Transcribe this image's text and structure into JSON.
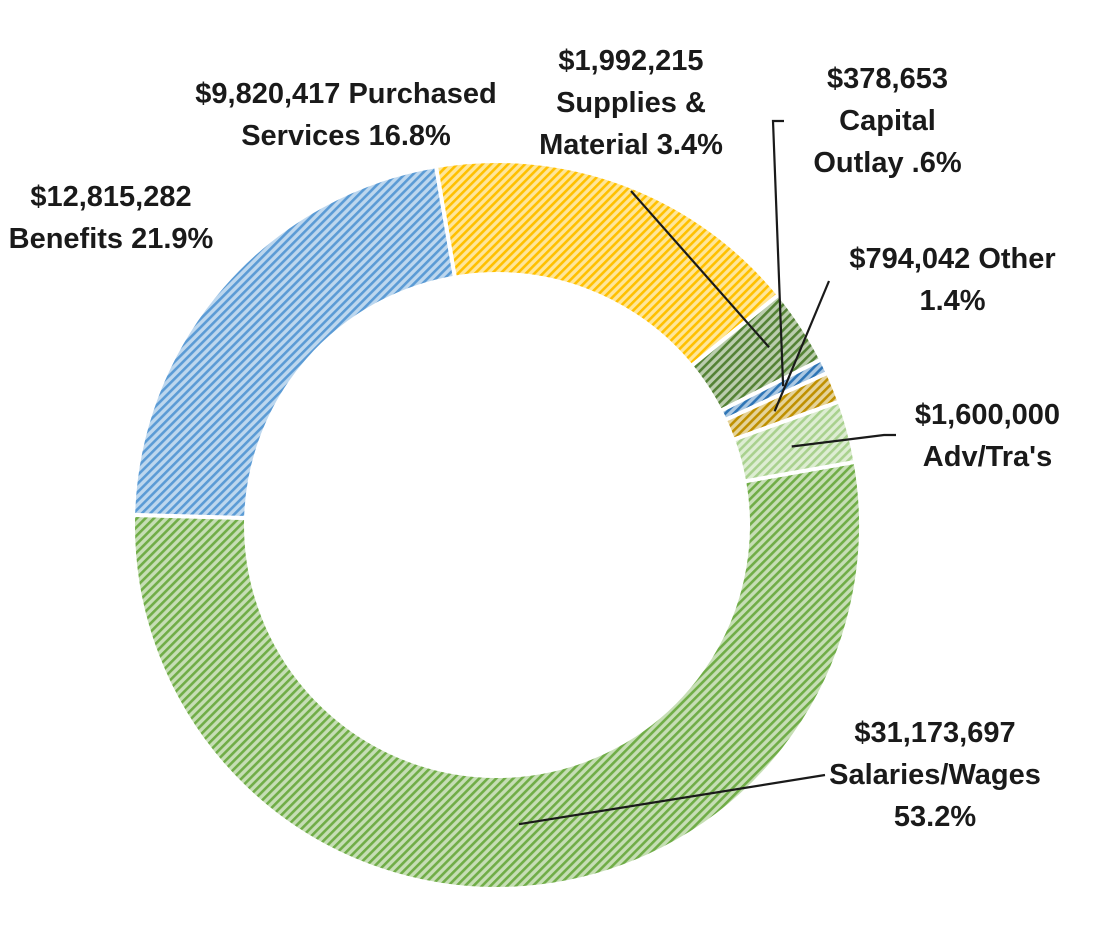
{
  "chart_data": {
    "type": "pie",
    "variant": "doughnut",
    "title": "",
    "legend": "none",
    "categories": [
      "Salaries/Wages",
      "Benefits",
      "Purchased Services",
      "Supplies & Material",
      "Capital Outlay",
      "Other",
      "Adv/Tra's"
    ],
    "values": [
      31173697,
      12815282,
      9820417,
      1992215,
      378653,
      794042,
      1600000
    ],
    "colors": [
      "#70ad47",
      "#5b9bd5",
      "#ffc000",
      "#548235",
      "#2e75b6",
      "#bf9000",
      "#a9d18e"
    ],
    "labels": [
      {
        "line1": "$31,173,697",
        "line2": "Salaries/Wages",
        "line3": "53.2%"
      },
      {
        "line1": "$12,815,282",
        "line2": "Benefits 21.9%"
      },
      {
        "line1": "$9,820,417 Purchased",
        "line2": "Services 16.8%"
      },
      {
        "line1": "$1,992,215",
        "line2": "Supplies &",
        "line3": "Material 3.4%"
      },
      {
        "line1": "$378,653",
        "line2": "Capital",
        "line3": "Outlay .6%"
      },
      {
        "line1": "$794,042 Other",
        "line2": "1.4%"
      },
      {
        "line1": "$1,600,000",
        "line2": "Adv/Tra's"
      }
    ]
  }
}
